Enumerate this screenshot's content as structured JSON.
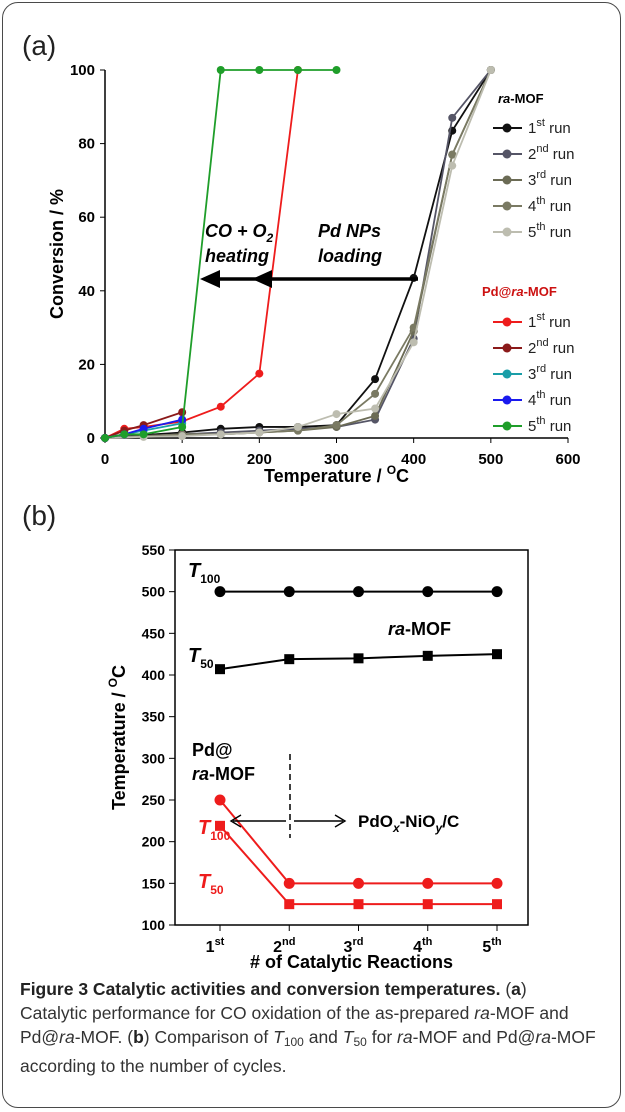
{
  "chart_data": [
    {
      "type": "line",
      "panel_label": "(a)",
      "xlabel": "Temperature / ",
      "xlabel_unit": "C",
      "xlabel_sup": "O",
      "ylabel": "Conversion / %",
      "xlim": [
        0,
        600
      ],
      "ylim": [
        0,
        100
      ],
      "xticks": [
        0,
        100,
        200,
        300,
        400,
        500,
        600
      ],
      "yticks": [
        0,
        20,
        40,
        60,
        80,
        100
      ],
      "legend_groups": [
        {
          "title_italic": "ra",
          "title_rest": "-MOF"
        },
        {
          "title_plain": "Pd@",
          "title_italic": "ra",
          "title_rest": "-MOF"
        }
      ],
      "series": [
        {
          "group": 0,
          "run": "1",
          "sup": "st",
          "color": "#111111",
          "x": [
            0,
            50,
            100,
            150,
            200,
            250,
            300,
            350,
            400,
            450,
            500
          ],
          "y": [
            0,
            0.8,
            1.5,
            2.5,
            3,
            3,
            3.5,
            16,
            43.5,
            83.5,
            100
          ]
        },
        {
          "group": 0,
          "run": "2",
          "sup": "nd",
          "color": "#555566",
          "x": [
            0,
            50,
            100,
            150,
            200,
            250,
            300,
            350,
            400,
            450,
            500
          ],
          "y": [
            0,
            0.5,
            1,
            1.5,
            2,
            2.5,
            3,
            5,
            27,
            87,
            100
          ]
        },
        {
          "group": 0,
          "run": "3",
          "sup": "rd",
          "color": "#6b6b55",
          "x": [
            0,
            50,
            100,
            150,
            200,
            250,
            300,
            350,
            400,
            450,
            500
          ],
          "y": [
            0,
            0.5,
            1,
            1,
            1.5,
            2,
            3,
            6,
            29,
            77,
            100
          ]
        },
        {
          "group": 0,
          "run": "4",
          "sup": "th",
          "color": "#7a7a63",
          "x": [
            0,
            50,
            100,
            150,
            200,
            250,
            300,
            350,
            400,
            450,
            500
          ],
          "y": [
            0,
            0.5,
            1,
            1,
            1.5,
            2,
            3.5,
            12,
            30,
            77,
            100
          ]
        },
        {
          "group": 0,
          "run": "5",
          "sup": "th",
          "color": "#bdbdb0",
          "x": [
            0,
            50,
            100,
            150,
            200,
            250,
            300,
            350,
            400,
            450,
            500
          ],
          "y": [
            0,
            0.3,
            0.5,
            1,
            1.5,
            3,
            6.5,
            8,
            26,
            74,
            100
          ]
        },
        {
          "group": 1,
          "run": "1",
          "sup": "st",
          "color": "#ee1c1c",
          "x": [
            0,
            25,
            50,
            100,
            150,
            200,
            250,
            300
          ],
          "y": [
            0,
            2.5,
            3,
            4.5,
            8.5,
            17.5,
            100,
            null
          ]
        },
        {
          "group": 1,
          "run": "2",
          "sup": "nd",
          "color": "#8b1a1a",
          "x": [
            0,
            25,
            50,
            100
          ],
          "y": [
            0,
            2,
            3.5,
            7
          ]
        },
        {
          "group": 1,
          "run": "3",
          "sup": "rd",
          "color": "#1a9ea8",
          "x": [
            0,
            25,
            50,
            100
          ],
          "y": [
            0,
            1,
            2,
            4
          ]
        },
        {
          "group": 1,
          "run": "4",
          "sup": "th",
          "color": "#1a1aee",
          "x": [
            0,
            25,
            50,
            100
          ],
          "y": [
            0,
            1,
            2.5,
            5
          ]
        },
        {
          "group": 1,
          "run": "5",
          "sup": "th",
          "color": "#1f9e2a",
          "x": [
            0,
            25,
            50,
            100,
            150,
            200,
            250,
            300
          ],
          "y": [
            0,
            1,
            1,
            3,
            100,
            100,
            100,
            100
          ]
        }
      ],
      "legend_run_suffix": "run",
      "annotations": {
        "left_line1": "CO + O",
        "left_line1_sub": "2",
        "left_line2": "heating",
        "right_line1": "Pd NPs",
        "right_line2": "loading"
      }
    },
    {
      "type": "line",
      "panel_label": "(b)",
      "xlabel": "# of Catalytic Reactions",
      "ylabel": "Temperature  / ",
      "ylabel_sup": "O",
      "ylabel_unit": "C",
      "ylim": [
        100,
        550
      ],
      "yticks": [
        100,
        150,
        200,
        250,
        300,
        350,
        400,
        450,
        500,
        550
      ],
      "categories": [
        {
          "n": "1",
          "sup": "st"
        },
        {
          "n": "2",
          "sup": "nd"
        },
        {
          "n": "3",
          "sup": "rd"
        },
        {
          "n": "4",
          "sup": "th"
        },
        {
          "n": "5",
          "sup": "th"
        }
      ],
      "series": [
        {
          "label": "T",
          "sub": "100",
          "material": "ra-MOF",
          "marker": "circle",
          "color": "#000000",
          "values": [
            500,
            500,
            500,
            500,
            500
          ]
        },
        {
          "label": "T",
          "sub": "50",
          "material": "ra-MOF",
          "marker": "square",
          "color": "#000000",
          "values": [
            407,
            419,
            420,
            423,
            425
          ]
        },
        {
          "label": "T",
          "sub": "100",
          "material": "Pd@ra-MOF",
          "marker": "circle",
          "color": "#ee1c1c",
          "values": [
            250,
            150,
            150,
            150,
            150
          ]
        },
        {
          "label": "T",
          "sub": "50",
          "material": "Pd@ra-MOF",
          "marker": "square",
          "color": "#ee1c1c",
          "values": [
            219,
            125,
            125,
            125,
            125
          ]
        }
      ],
      "annotations": {
        "ra_mof_italic": "ra",
        "ra_mof_rest": "-MOF",
        "pd_line1": "Pd@",
        "pd_line2_italic": "ra",
        "pd_line2_rest": "-MOF",
        "pdox_a": "PdO",
        "pdox_x": "x",
        "pdox_b": "-NiO",
        "pdox_y": "y",
        "pdox_c": "/C"
      }
    }
  ],
  "caption": {
    "bold_title": "Figure 3 Catalytic activities and conversion temperatures.",
    "part_a_label": "a",
    "text_a1": "Catalytic performance for CO oxidation of the as-prepared ",
    "ra": "ra",
    "text_a2": "-MOF and Pd@",
    "text_a3": "-MOF. (",
    "part_b_label": "b",
    "text_b1": ") Comparison of ",
    "t": "T",
    "sub100": "100",
    "and": " and ",
    "sub50": "50",
    "text_b2": " for ",
    "text_b3": "-MOF and Pd@",
    "text_b4": "-MOF according to the number of cycles."
  }
}
